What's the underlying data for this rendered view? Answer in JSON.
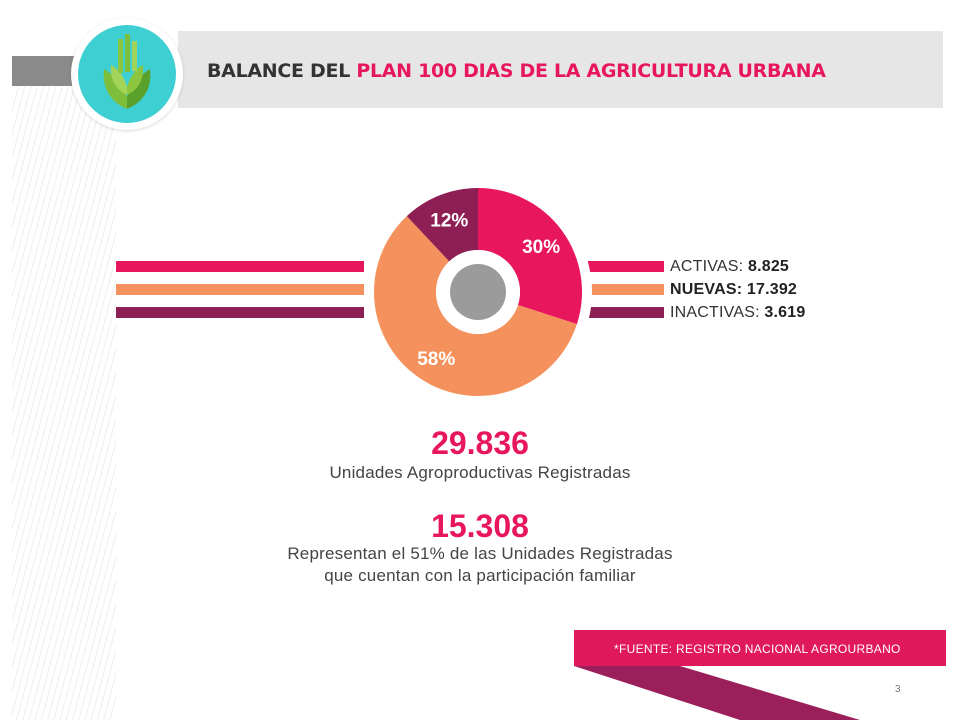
{
  "header": {
    "title_dark": "BALANCE DEL ",
    "title_highlight": "PLAN 100 DIAS DE LA AGRICULTURA URBANA"
  },
  "colors": {
    "pink": "#e8175d",
    "orange": "#f5915c",
    "maroon": "#8e1f55",
    "teal": "#3ecfd3",
    "center_gray": "#9b9b9b"
  },
  "legend": [
    {
      "label": "ACTIVAS:",
      "value": "8.825",
      "color": "#e8175d"
    },
    {
      "label": "NUEVAS:",
      "value": "17.392",
      "color": "#f5915c"
    },
    {
      "label": "INACTIVAS:",
      "value": "3.619",
      "color": "#8e1f55"
    }
  ],
  "chart_data": {
    "type": "pie",
    "title": "",
    "slices": [
      {
        "name": "ACTIVAS",
        "value": 30,
        "label": "30%",
        "color": "#e8175d"
      },
      {
        "name": "NUEVAS",
        "value": 58,
        "label": "58%",
        "color": "#f5915c"
      },
      {
        "name": "INACTIVAS",
        "value": 12,
        "label": "12%",
        "color": "#8e1f55"
      }
    ]
  },
  "stats": {
    "total_value": "29.836",
    "total_caption": "Unidades Agroproductivas Registradas",
    "family_value": "15.308",
    "family_caption_1": "Representan el 51% de las Unidades Registradas",
    "family_caption_2": "que cuentan con la participación familiar"
  },
  "footer": {
    "source": "*FUENTE: REGISTRO NACIONAL AGROURBANO",
    "page_number": "3"
  }
}
